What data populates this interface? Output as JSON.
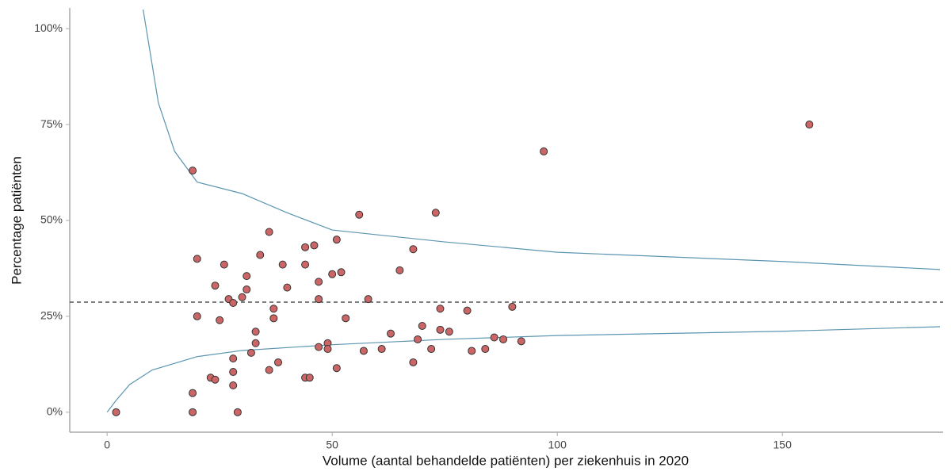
{
  "chart_data": {
    "type": "scatter",
    "x_label": "Volume (aantal behandelde patiënten) per ziekenhuis in 2020",
    "y_label": "Percentage patiënten",
    "x": [
      2,
      19,
      19,
      19,
      20,
      20,
      23,
      24,
      24,
      25,
      26,
      27,
      28,
      28,
      28,
      28,
      29,
      30,
      31,
      31,
      32,
      33,
      33,
      34,
      36,
      36,
      37,
      37,
      38,
      39,
      40,
      44,
      44,
      44,
      45,
      46,
      47,
      47,
      47,
      49,
      49,
      50,
      51,
      51,
      52,
      53,
      56,
      57,
      58,
      61,
      63,
      65,
      68,
      68,
      69,
      70,
      72,
      73,
      74,
      74,
      76,
      80,
      81,
      84,
      86,
      88,
      90,
      92,
      97,
      156
    ],
    "values": [
      0,
      0,
      5,
      63,
      40,
      25,
      9,
      8.5,
      33,
      24,
      38.5,
      29.5,
      28.5,
      14,
      10.5,
      7,
      0,
      30,
      32,
      35.5,
      15.5,
      21,
      18,
      41,
      11,
      47,
      27,
      24.5,
      13,
      38.5,
      32.5,
      43,
      38.5,
      9,
      9,
      43.5,
      34,
      29.5,
      17,
      18,
      16.5,
      36,
      45,
      11.5,
      36.5,
      24.5,
      51.5,
      16,
      29.5,
      16.5,
      20.5,
      37,
      42.5,
      13,
      19,
      22.5,
      16.5,
      52,
      27,
      21.5,
      21,
      26.5,
      16,
      16.5,
      19.5,
      19,
      27.5,
      18.5,
      68,
      75
    ],
    "color": "#cc6666",
    "edge_color": "#333333",
    "limits": [
      {
        "x": [
          8,
          11.4,
          15,
          20,
          30,
          40,
          50,
          75,
          100,
          150,
          185
        ],
        "values": [
          105,
          80.6,
          68,
          60,
          57,
          52,
          47.5,
          44.4,
          41.7,
          39.3,
          37.2
        ]
      },
      {
        "x": [
          0,
          2,
          5,
          10,
          20,
          30,
          50,
          75,
          100,
          150,
          185
        ],
        "values": [
          0,
          3.1,
          7.2,
          11,
          14.5,
          16.1,
          17.6,
          19,
          20,
          21.1,
          22.3
        ]
      }
    ],
    "limit_color": "#5b95b0",
    "reference_line": 28.7,
    "xlim": [
      -8.3,
      185.7
    ],
    "ylim": [
      -5.2,
      105.4
    ],
    "xticks": [
      0,
      50,
      100,
      150
    ],
    "yticks": [
      {
        "value": 0,
        "label": "0%"
      },
      {
        "value": 25,
        "label": "25%"
      },
      {
        "value": 50,
        "label": "50%"
      },
      {
        "value": 75,
        "label": "75%"
      },
      {
        "value": 100,
        "label": "100%"
      }
    ],
    "grid": false
  }
}
